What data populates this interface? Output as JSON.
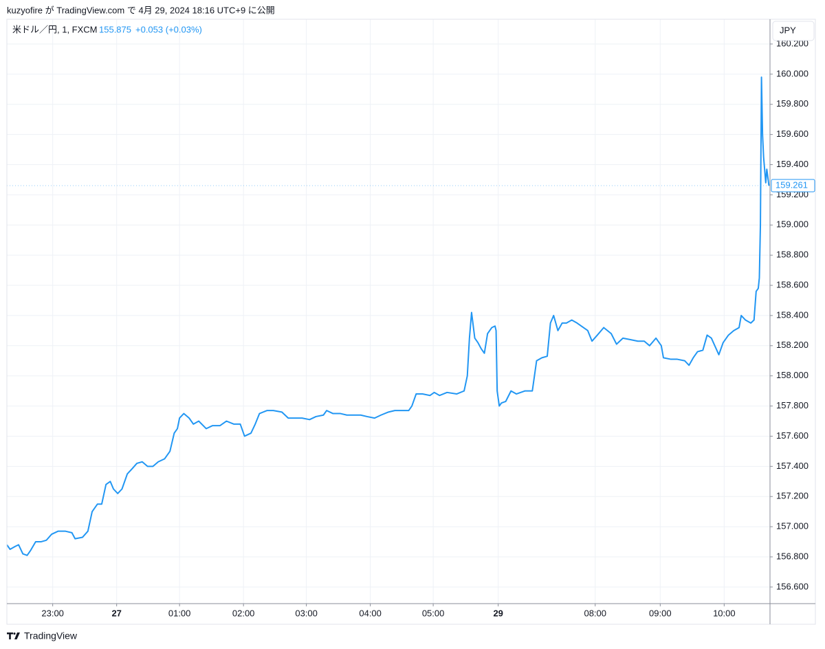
{
  "chart_data": {
    "type": "line",
    "publisher": "kuzyofire が TradingView.com で 4月 29, 2024 18:16 UTC+9 に公開",
    "symbol": "米ドル／円, 1, FXCM",
    "legend_price": "155.875",
    "legend_change": "+0.053 (+0.03%)",
    "currency": "JPY",
    "brand": "TradingView",
    "last_price": 159.261,
    "xlim": [
      -43,
      673
    ],
    "ylim": [
      156.49,
      160.364
    ],
    "xticks": [
      {
        "value": 0,
        "label": "23:00"
      },
      {
        "value": 60,
        "label": "27"
      },
      {
        "value": 119,
        "label": "01:00"
      },
      {
        "value": 179,
        "label": "02:00"
      },
      {
        "value": 238,
        "label": "03:00"
      },
      {
        "value": 298,
        "label": "04:00"
      },
      {
        "value": 357,
        "label": "05:00"
      },
      {
        "value": 418,
        "label": "29"
      },
      {
        "value": 509,
        "label": "08:00"
      },
      {
        "value": 570,
        "label": "09:00"
      },
      {
        "value": 630,
        "label": "10:00"
      }
    ],
    "yticks": [
      {
        "value": 156.6,
        "label": "156.600"
      },
      {
        "value": 156.8,
        "label": "156.800"
      },
      {
        "value": 157.0,
        "label": "157.000"
      },
      {
        "value": 157.2,
        "label": "157.200"
      },
      {
        "value": 157.4,
        "label": "157.400"
      },
      {
        "value": 157.6,
        "label": "157.600"
      },
      {
        "value": 157.8,
        "label": "157.800"
      },
      {
        "value": 158.0,
        "label": "158.000"
      },
      {
        "value": 158.2,
        "label": "158.200"
      },
      {
        "value": 158.4,
        "label": "158.400"
      },
      {
        "value": 158.6,
        "label": "158.600"
      },
      {
        "value": 158.8,
        "label": "158.800"
      },
      {
        "value": 159.0,
        "label": "159.000"
      },
      {
        "value": 159.2,
        "label": "159.200"
      },
      {
        "value": 159.4,
        "label": "159.400"
      },
      {
        "value": 159.6,
        "label": "159.600"
      },
      {
        "value": 159.8,
        "label": "159.800"
      },
      {
        "value": 160.0,
        "label": "160.000"
      },
      {
        "value": 160.2,
        "label": "160.200"
      }
    ],
    "grid": true,
    "series": [
      {
        "name": "米ドル／円",
        "color": "#2196f3",
        "x": [
          -43,
          -40,
          -35,
          -32,
          -28,
          -24,
          -21,
          -16,
          -11,
          -6,
          -1,
          5,
          12,
          18,
          21,
          28,
          33,
          37,
          42,
          46,
          50,
          54,
          57,
          61,
          65,
          70,
          74,
          79,
          84,
          89,
          94,
          99,
          105,
          110,
          114,
          117,
          119,
          123,
          128,
          132,
          137,
          144,
          150,
          157,
          163,
          170,
          176,
          180,
          186,
          190,
          194,
          201,
          207,
          215,
          221,
          228,
          234,
          241,
          247,
          254,
          257,
          263,
          270,
          276,
          283,
          289,
          295,
          302,
          308,
          315,
          321,
          328,
          334,
          337,
          341,
          347,
          354,
          358,
          363,
          370,
          379,
          386,
          389,
          391,
          393,
          396,
          399,
          402,
          405,
          408,
          412,
          415,
          416,
          417,
          419,
          421,
          425,
          430,
          435,
          443,
          450,
          452,
          454,
          459,
          464,
          467,
          470,
          474,
          478,
          482,
          487,
          492,
          496,
          502,
          506,
          511,
          517,
          524,
          529,
          535,
          542,
          549,
          555,
          560,
          566,
          571,
          573,
          580,
          586,
          593,
          597,
          601,
          605,
          610,
          614,
          618,
          625,
          629,
          634,
          639,
          644,
          646,
          650,
          655,
          658,
          660,
          662,
          663,
          664,
          665,
          666,
          667,
          669,
          670,
          672
        ],
        "values": [
          156.88,
          156.85,
          156.87,
          156.88,
          156.82,
          156.81,
          156.84,
          156.9,
          156.9,
          156.91,
          156.95,
          156.97,
          156.97,
          156.96,
          156.92,
          156.93,
          156.97,
          157.1,
          157.15,
          157.15,
          157.28,
          157.3,
          157.25,
          157.22,
          157.25,
          157.35,
          157.38,
          157.42,
          157.43,
          157.4,
          157.4,
          157.43,
          157.45,
          157.5,
          157.62,
          157.65,
          157.72,
          157.75,
          157.72,
          157.68,
          157.7,
          157.65,
          157.67,
          157.67,
          157.7,
          157.68,
          157.68,
          157.6,
          157.62,
          157.68,
          157.75,
          157.77,
          157.77,
          157.76,
          157.72,
          157.72,
          157.72,
          157.71,
          157.73,
          157.74,
          157.77,
          157.75,
          157.75,
          157.74,
          157.74,
          157.74,
          157.73,
          157.72,
          157.74,
          157.76,
          157.77,
          157.77,
          157.77,
          157.8,
          157.88,
          157.88,
          157.87,
          157.89,
          157.87,
          157.89,
          157.88,
          157.9,
          158.0,
          158.25,
          158.42,
          158.25,
          158.22,
          158.18,
          158.15,
          158.28,
          158.32,
          158.33,
          158.3,
          157.9,
          157.8,
          157.82,
          157.83,
          157.9,
          157.88,
          157.9,
          157.9,
          158.0,
          158.1,
          158.12,
          158.13,
          158.35,
          158.4,
          158.3,
          158.35,
          158.35,
          158.37,
          158.35,
          158.33,
          158.3,
          158.23,
          158.27,
          158.32,
          158.28,
          158.21,
          158.25,
          158.24,
          158.23,
          158.23,
          158.2,
          158.25,
          158.2,
          158.12,
          158.11,
          158.11,
          158.1,
          158.07,
          158.12,
          158.16,
          158.17,
          158.27,
          158.25,
          158.14,
          158.22,
          158.27,
          158.3,
          158.32,
          158.4,
          158.37,
          158.35,
          158.37,
          158.56,
          158.58,
          158.65,
          159.0,
          159.98,
          159.6,
          159.45,
          159.28,
          159.37,
          159.26
        ]
      }
    ]
  }
}
